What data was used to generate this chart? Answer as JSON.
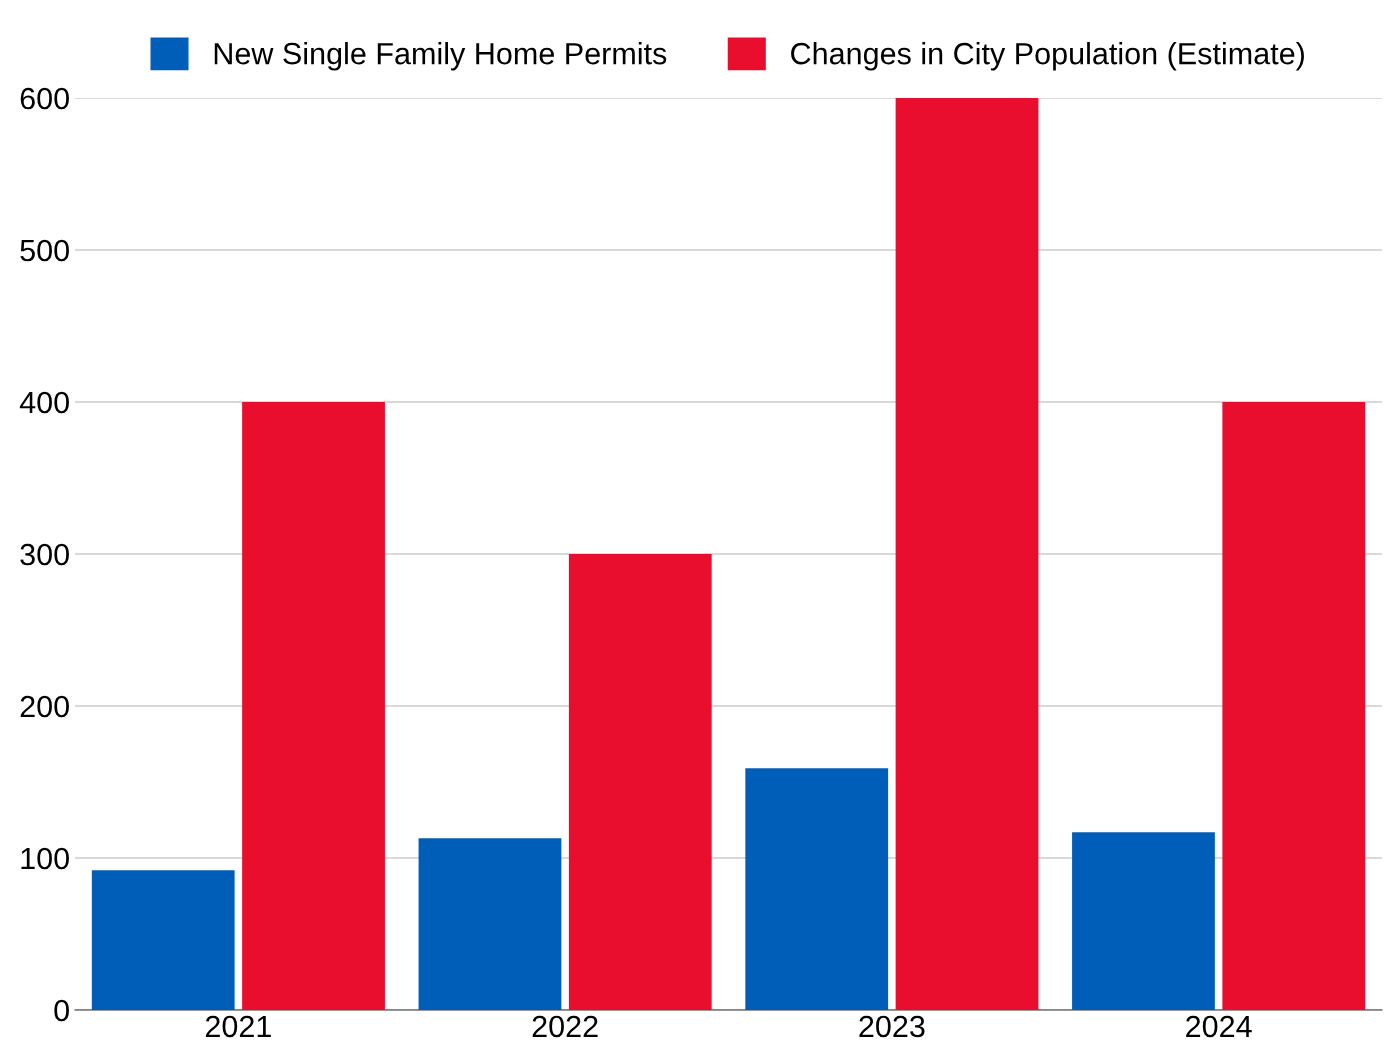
{
  "chart_data": {
    "type": "bar",
    "categories": [
      "2021",
      "2022",
      "2023",
      "2024"
    ],
    "series": [
      {
        "name": "New Single Family Home Permits",
        "color": "#005eb8",
        "values": [
          92,
          113,
          159,
          117
        ]
      },
      {
        "name": "Changes in City Population (Estimate)",
        "color": "#e90e2d",
        "values": [
          400,
          300,
          600,
          400
        ]
      }
    ],
    "ylim": [
      0,
      600
    ],
    "yticks": [
      0,
      100,
      200,
      300,
      400,
      500,
      600
    ],
    "grid": "y",
    "legend": "top"
  }
}
